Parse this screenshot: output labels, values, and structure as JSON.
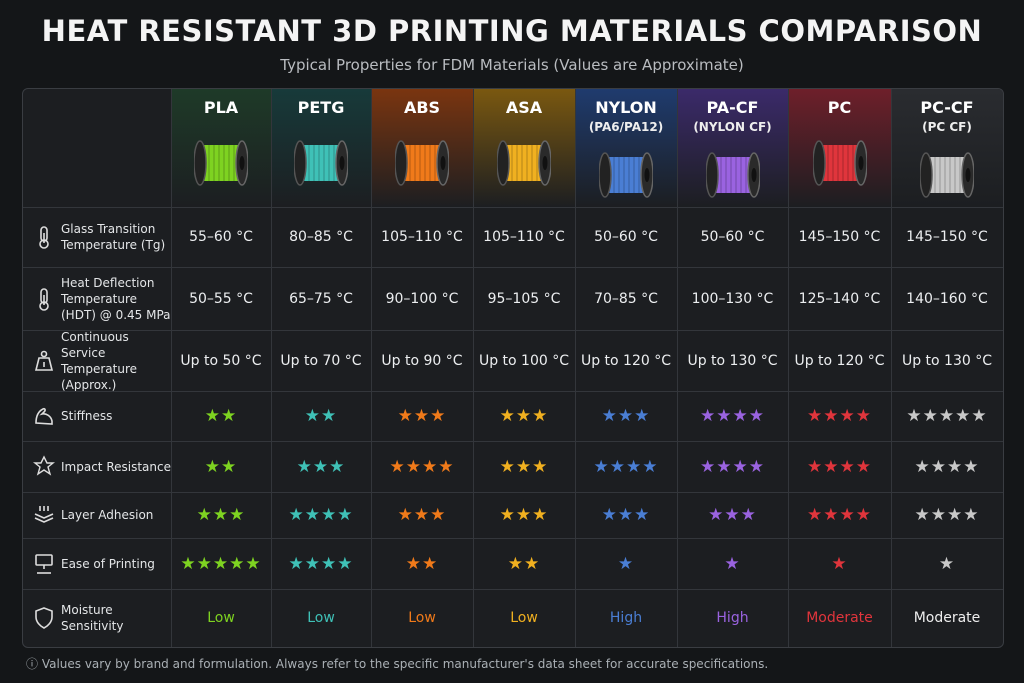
{
  "title": "HEAT RESISTANT 3D PRINTING MATERIALS COMPARISON",
  "subtitle": "Typical Properties for FDM Materials (Values are Approximate)",
  "materials": [
    {
      "name": "PLA",
      "sub": "",
      "bg": "#1e3a28",
      "color": "#7ed321"
    },
    {
      "name": "PETG",
      "sub": "",
      "bg": "#173a3a",
      "color": "#3fc1b7"
    },
    {
      "name": "ABS",
      "sub": "",
      "bg": "#7a3510",
      "color": "#f07a1a"
    },
    {
      "name": "ASA",
      "sub": "",
      "bg": "#7a5810",
      "color": "#f0b020"
    },
    {
      "name": "NYLON",
      "sub": "(PA6/PA12)",
      "bg": "#1f3b6e",
      "color": "#4a7ed4"
    },
    {
      "name": "PA-CF",
      "sub": "(NYLON CF)",
      "bg": "#3b2a6a",
      "color": "#9a63e0"
    },
    {
      "name": "PC",
      "sub": "",
      "bg": "#6e1f2a",
      "color": "#e0353c"
    },
    {
      "name": "PC-CF",
      "sub": "(PC CF)",
      "bg": "#2a2c30",
      "color": "#c8c8c8"
    }
  ],
  "rows": [
    {
      "label": "Glass Transition Temperature (Tg)",
      "icon": "thermometer-icon",
      "values": [
        "55–60 °C",
        "80–85 °C",
        "105–110 °C",
        "105–110 °C",
        "50–60 °C",
        "50–60 °C",
        "145–150 °C",
        "145–150 °C"
      ]
    },
    {
      "label": "Heat Deflection Temperature (HDT) @ 0.45 MPa",
      "icon": "thermometer-icon",
      "values": [
        "50–55 °C",
        "65–75 °C",
        "90–100 °C",
        "95–105 °C",
        "70–85 °C",
        "100–130 °C",
        "125–140 °C",
        "140–160 °C"
      ]
    },
    {
      "label": "Continuous Service Temperature (Approx.)",
      "icon": "weight-icon",
      "values": [
        "Up to 50 °C",
        "Up to 70 °C",
        "Up to 90 °C",
        "Up to 100 °C",
        "Up to 120 °C",
        "Up to 130 °C",
        "Up to 120 °C",
        "Up to 130 °C"
      ]
    },
    {
      "label": "Stiffness",
      "icon": "arm-icon",
      "stars": [
        2,
        2,
        3,
        3,
        3,
        4,
        4,
        5
      ]
    },
    {
      "label": "Impact Resistance",
      "icon": "impact-icon",
      "stars": [
        2,
        3,
        4,
        3,
        4,
        4,
        4,
        4
      ]
    },
    {
      "label": "Layer Adhesion",
      "icon": "layers-icon",
      "stars": [
        3,
        4,
        3,
        3,
        3,
        3,
        4,
        4
      ]
    },
    {
      "label": "Ease of Printing",
      "icon": "printer-icon",
      "stars": [
        5,
        4,
        2,
        2,
        1,
        1,
        1,
        1
      ]
    },
    {
      "label": "Moisture Sensitivity",
      "icon": "shield-icon",
      "values": [
        "Low",
        "Low",
        "Low",
        "Low",
        "High",
        "High",
        "Moderate",
        "Moderate"
      ],
      "colored": true
    }
  ],
  "footer": "ⓘ  Values vary by brand and formulation. Always refer to the specific manufacturer's data sheet for accurate specifications."
}
